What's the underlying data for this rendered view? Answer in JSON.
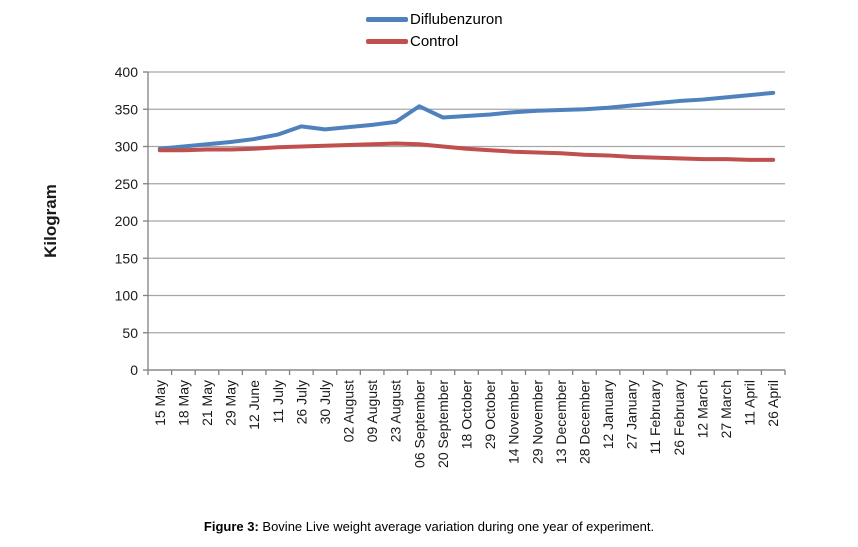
{
  "legend": {
    "items": [
      {
        "label": "Diflubenzuron",
        "color": "#4F81BD"
      },
      {
        "label": "Control",
        "color": "#C0504D"
      }
    ]
  },
  "y_axis": {
    "title": "Kilogram"
  },
  "caption": {
    "prefix": "Figure 3:",
    "text": " Bovine Live weight average variation during one year of experiment."
  },
  "chart_data": {
    "type": "line",
    "title": "",
    "xlabel": "",
    "ylabel": "Kilogram",
    "ylim": [
      0,
      400
    ],
    "ytick_step": 50,
    "grid": true,
    "legend_position": "top-center",
    "categories": [
      "15 May",
      "18 May",
      "21 May",
      "29 May",
      "12 June",
      "11 July",
      "26 July",
      "30 July",
      "02 August",
      "09 August",
      "23 August",
      "06 September",
      "20 September",
      "18 October",
      "29 October",
      "14 November",
      "29 November",
      "13 December",
      "28 December",
      "12 January",
      "27 January",
      "11 February",
      "26 February",
      "12 March",
      "27 March",
      "11 April",
      "26 April"
    ],
    "series": [
      {
        "name": "Diflubenzuron",
        "color": "#4F81BD",
        "values": [
          297,
          300,
          303,
          306,
          310,
          316,
          327,
          323,
          326,
          329,
          333,
          354,
          339,
          341,
          343,
          346,
          348,
          349,
          350,
          352,
          355,
          358,
          361,
          363,
          366,
          369,
          372
        ]
      },
      {
        "name": "Control",
        "color": "#C0504D",
        "values": [
          295,
          295,
          296,
          296,
          297,
          299,
          300,
          301,
          302,
          303,
          304,
          303,
          300,
          297,
          295,
          293,
          292,
          291,
          289,
          288,
          286,
          285,
          284,
          283,
          283,
          282,
          282
        ]
      }
    ],
    "axis_color": "#808080",
    "gridline_color": "#A6A6A6"
  }
}
